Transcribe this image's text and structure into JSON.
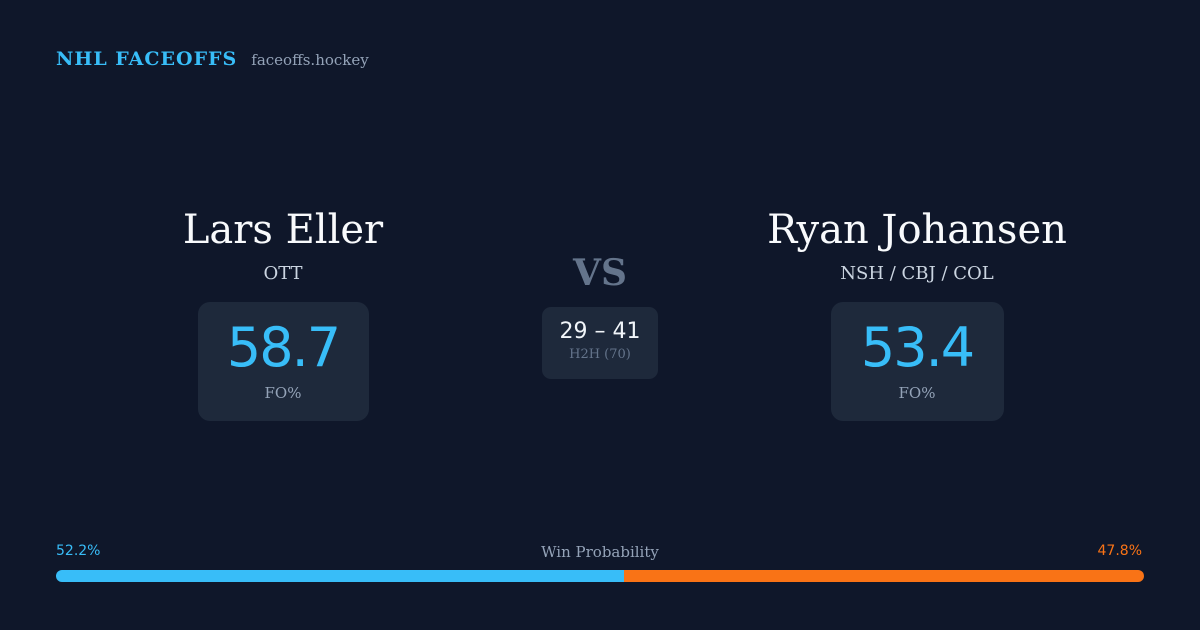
{
  "brand": {
    "name": "NHL FACEOFFS",
    "url": "faceoffs.hockey"
  },
  "player_left": {
    "name": "Lars Eller",
    "team": "OTT",
    "fo_pct": "58.7",
    "fo_label": "FO%"
  },
  "vs_label": "VS",
  "head_to_head": {
    "score": "29 – 41",
    "label": "H2H (70)"
  },
  "player_right": {
    "name": "Ryan Johansen",
    "team": "NSH / CBJ / COL",
    "fo_pct": "53.4",
    "fo_label": "FO%"
  },
  "win_probability": {
    "title": "Win Probability",
    "left_label": "52.2%",
    "right_label": "47.8%",
    "left_value": 52.2,
    "right_value": 47.8,
    "colors": {
      "left": "#38bdf8",
      "right": "#f97316"
    }
  }
}
